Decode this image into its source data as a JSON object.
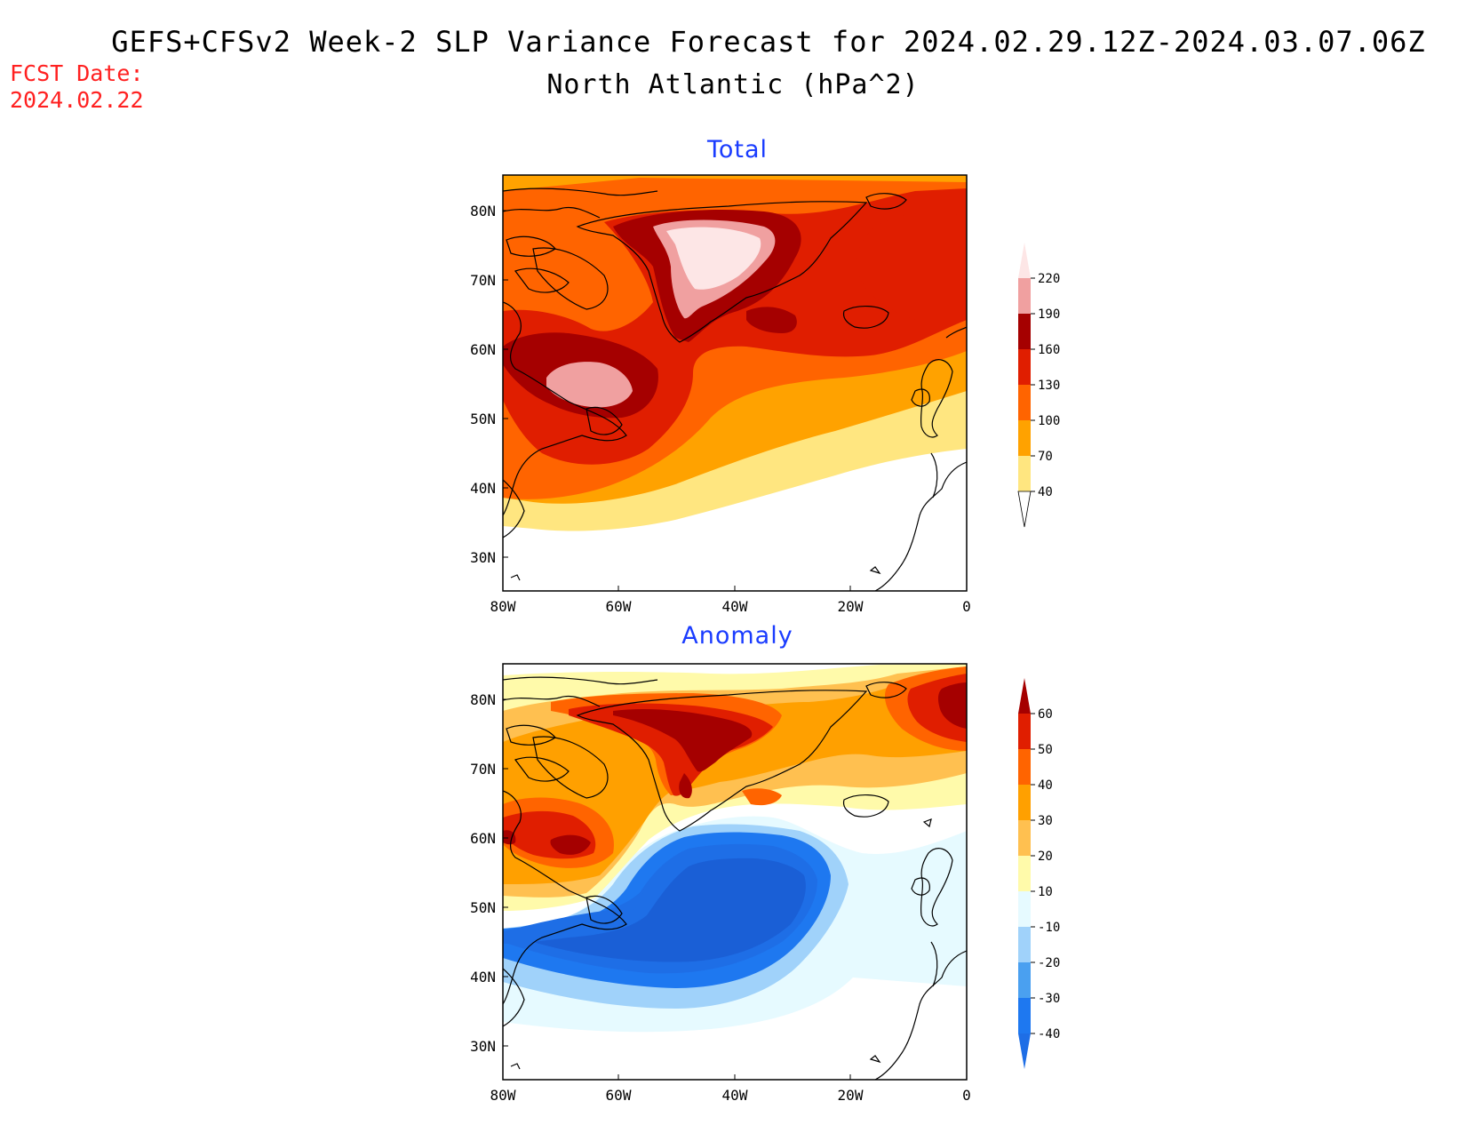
{
  "title": {
    "line1": "GEFS+CFSv2 Week-2 SLP Variance Forecast for 2024.02.29.12Z-2024.03.07.06Z",
    "line2": "North Atlantic (hPa^2)"
  },
  "fcst_date": {
    "label": "FCST Date:",
    "value": "2024.02.22"
  },
  "panels": [
    {
      "title": "Total",
      "legend": {
        "levels": [
          "40",
          "70",
          "100",
          "130",
          "160",
          "190",
          "220"
        ],
        "colors": [
          "#ffe680",
          "#ffa200",
          "#ff6400",
          "#e01e00",
          "#a50000",
          "#f0a0a0",
          "#fde6e6"
        ]
      }
    },
    {
      "title": "Anomaly",
      "legend": {
        "levels": [
          "-40",
          "-30",
          "-20",
          "-10",
          "10",
          "20",
          "30",
          "40",
          "50",
          "60"
        ],
        "colors": [
          "#1e6ee6",
          "#1e78f0",
          "#4aa0f0",
          "#a0d2fa",
          "#e6faff",
          "#fffaaa",
          "#ffc050",
          "#ffa000",
          "#ff6400",
          "#e01e00",
          "#a50000"
        ]
      }
    }
  ],
  "axes": {
    "lat_ticks": [
      "80N",
      "70N",
      "60N",
      "50N",
      "40N",
      "30N"
    ],
    "lon_ticks": [
      "80W",
      "60W",
      "40W",
      "20W",
      "0"
    ]
  }
}
